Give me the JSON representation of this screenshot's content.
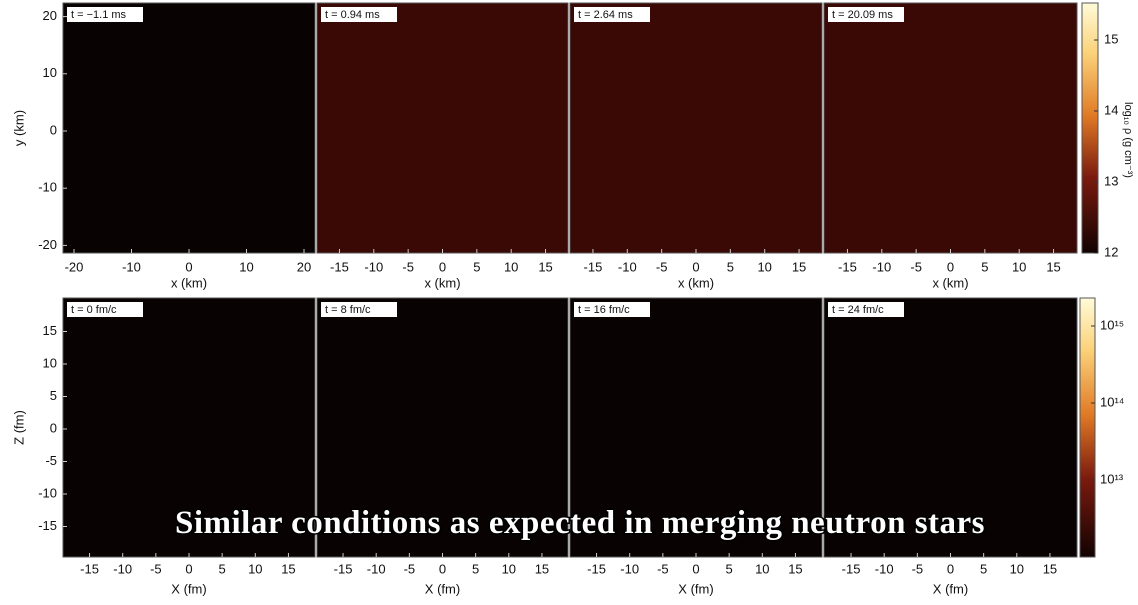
{
  "top_row": {
    "panels": [
      {
        "label": "t = −1.1 ms"
      },
      {
        "label": "t = 0.94 ms"
      },
      {
        "label": "t = 2.64 ms"
      },
      {
        "label": "t = 20.09 ms"
      }
    ],
    "first_panel_xticks": [
      -20,
      -10,
      0,
      10,
      20
    ],
    "xticks": [
      -15,
      -10,
      -5,
      0,
      5,
      10,
      15
    ],
    "yticks": [
      20,
      10,
      0,
      -10,
      -20
    ],
    "x_label": "x (km)",
    "y_label": "y (km)",
    "colorbar": {
      "label": "log₁₀ ρ (g cm⁻³)",
      "ticks": [
        15,
        14,
        13,
        12
      ]
    }
  },
  "bottom_row": {
    "panels": [
      {
        "label": "t = 0 fm/c"
      },
      {
        "label": "t = 8 fm/c"
      },
      {
        "label": "t = 16 fm/c"
      },
      {
        "label": "t = 24 fm/c"
      }
    ],
    "xticks": [
      -15,
      -10,
      -5,
      0,
      5,
      10,
      15
    ],
    "yticks": [
      15,
      10,
      5,
      0,
      -5,
      -10,
      -15
    ],
    "x_label": "X (fm)",
    "y_label": "Z (fm)",
    "colorbar": {
      "ticks": [
        {
          "value": 15,
          "label": "10¹⁵"
        },
        {
          "value": 14,
          "label": "10¹⁴"
        },
        {
          "value": 13,
          "label": "10¹³"
        }
      ]
    }
  },
  "caption": "Similar conditions as expected in merging neutron stars"
}
